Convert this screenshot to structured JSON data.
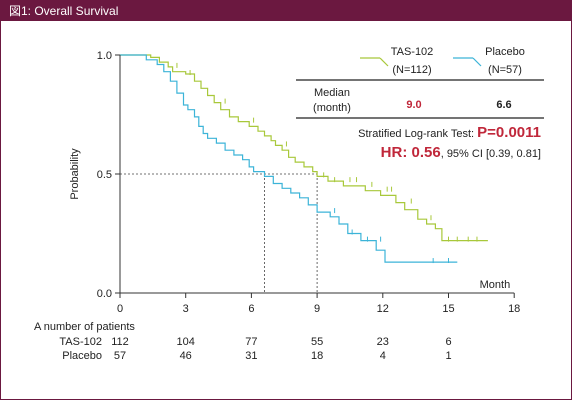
{
  "header": {
    "title": "図1: Overall Survival"
  },
  "chart_data": {
    "type": "line",
    "title": "図1: Overall Survival",
    "xlabel": "Month",
    "ylabel": "Probability",
    "xlim": [
      0,
      18
    ],
    "ylim": [
      0,
      1.0
    ],
    "x_ticks": [
      0,
      3,
      6,
      9,
      12,
      15,
      18
    ],
    "y_ticks": [
      0.0,
      0.5,
      1.0
    ],
    "y_tick_labels": [
      "0.0",
      "0.5",
      "1.0"
    ],
    "grid": false,
    "legend_position": "top-right",
    "median_line": {
      "y": 0.5,
      "x_values": [
        6.6,
        9.0
      ]
    },
    "series": [
      {
        "name": "TAS-102",
        "count_label": "(N=112)",
        "color": "#a8c83a",
        "points": [
          [
            0,
            1.0
          ],
          [
            1.4,
            1.0
          ],
          [
            1.4,
            0.99
          ],
          [
            1.8,
            0.99
          ],
          [
            1.8,
            0.97
          ],
          [
            2.2,
            0.97
          ],
          [
            2.2,
            0.95
          ],
          [
            2.4,
            0.95
          ],
          [
            2.4,
            0.93
          ],
          [
            3.0,
            0.93
          ],
          [
            3.0,
            0.92
          ],
          [
            3.4,
            0.92
          ],
          [
            3.4,
            0.89
          ],
          [
            3.7,
            0.89
          ],
          [
            3.7,
            0.86
          ],
          [
            4.0,
            0.86
          ],
          [
            4.0,
            0.83
          ],
          [
            4.3,
            0.83
          ],
          [
            4.3,
            0.8
          ],
          [
            4.6,
            0.8
          ],
          [
            4.6,
            0.77
          ],
          [
            5.0,
            0.77
          ],
          [
            5.0,
            0.74
          ],
          [
            5.4,
            0.74
          ],
          [
            5.4,
            0.72
          ],
          [
            5.9,
            0.72
          ],
          [
            5.9,
            0.7
          ],
          [
            6.3,
            0.7
          ],
          [
            6.3,
            0.68
          ],
          [
            6.6,
            0.68
          ],
          [
            6.6,
            0.66
          ],
          [
            6.9,
            0.66
          ],
          [
            6.9,
            0.64
          ],
          [
            7.1,
            0.64
          ],
          [
            7.1,
            0.62
          ],
          [
            7.4,
            0.62
          ],
          [
            7.4,
            0.6
          ],
          [
            7.7,
            0.6
          ],
          [
            7.7,
            0.57
          ],
          [
            8.0,
            0.57
          ],
          [
            8.0,
            0.55
          ],
          [
            8.4,
            0.55
          ],
          [
            8.4,
            0.53
          ],
          [
            8.8,
            0.53
          ],
          [
            8.8,
            0.51
          ],
          [
            9.0,
            0.51
          ],
          [
            9.0,
            0.49
          ],
          [
            9.5,
            0.49
          ],
          [
            9.5,
            0.47
          ],
          [
            10.2,
            0.47
          ],
          [
            10.2,
            0.45
          ],
          [
            11.2,
            0.45
          ],
          [
            11.2,
            0.43
          ],
          [
            11.9,
            0.43
          ],
          [
            11.9,
            0.41
          ],
          [
            12.6,
            0.41
          ],
          [
            12.6,
            0.38
          ],
          [
            13.0,
            0.38
          ],
          [
            13.0,
            0.35
          ],
          [
            13.6,
            0.35
          ],
          [
            13.6,
            0.31
          ],
          [
            14.0,
            0.31
          ],
          [
            14.0,
            0.29
          ],
          [
            14.4,
            0.29
          ],
          [
            14.4,
            0.27
          ],
          [
            14.7,
            0.27
          ],
          [
            14.7,
            0.22
          ],
          [
            16.8,
            0.22
          ]
        ],
        "censor_marks": [
          [
            2.6,
            0.95
          ],
          [
            3.2,
            0.92
          ],
          [
            4.8,
            0.8
          ],
          [
            6.1,
            0.72
          ],
          [
            7.6,
            0.62
          ],
          [
            9.3,
            0.49
          ],
          [
            9.8,
            0.47
          ],
          [
            10.5,
            0.47
          ],
          [
            10.8,
            0.47
          ],
          [
            11.5,
            0.45
          ],
          [
            12.2,
            0.43
          ],
          [
            12.4,
            0.43
          ],
          [
            13.3,
            0.38
          ],
          [
            14.2,
            0.31
          ],
          [
            15.0,
            0.22
          ],
          [
            15.4,
            0.22
          ],
          [
            15.9,
            0.22
          ],
          [
            16.3,
            0.22
          ]
        ]
      },
      {
        "name": "Placebo",
        "count_label": "(N=57)",
        "color": "#3cb4d8",
        "points": [
          [
            0,
            1.0
          ],
          [
            1.2,
            1.0
          ],
          [
            1.2,
            0.98
          ],
          [
            1.7,
            0.98
          ],
          [
            1.7,
            0.96
          ],
          [
            2.0,
            0.96
          ],
          [
            2.0,
            0.93
          ],
          [
            2.3,
            0.93
          ],
          [
            2.3,
            0.89
          ],
          [
            2.6,
            0.89
          ],
          [
            2.6,
            0.84
          ],
          [
            2.9,
            0.84
          ],
          [
            2.9,
            0.79
          ],
          [
            3.1,
            0.79
          ],
          [
            3.1,
            0.77
          ],
          [
            3.4,
            0.77
          ],
          [
            3.4,
            0.74
          ],
          [
            3.6,
            0.74
          ],
          [
            3.6,
            0.7
          ],
          [
            3.8,
            0.7
          ],
          [
            3.8,
            0.67
          ],
          [
            4.0,
            0.67
          ],
          [
            4.0,
            0.65
          ],
          [
            4.4,
            0.65
          ],
          [
            4.4,
            0.63
          ],
          [
            4.8,
            0.63
          ],
          [
            4.8,
            0.6
          ],
          [
            5.2,
            0.6
          ],
          [
            5.2,
            0.58
          ],
          [
            5.6,
            0.58
          ],
          [
            5.6,
            0.56
          ],
          [
            5.9,
            0.56
          ],
          [
            5.9,
            0.53
          ],
          [
            6.1,
            0.53
          ],
          [
            6.1,
            0.51
          ],
          [
            6.6,
            0.51
          ],
          [
            6.6,
            0.49
          ],
          [
            7.0,
            0.49
          ],
          [
            7.0,
            0.46
          ],
          [
            7.4,
            0.46
          ],
          [
            7.4,
            0.44
          ],
          [
            7.8,
            0.44
          ],
          [
            7.8,
            0.42
          ],
          [
            8.2,
            0.42
          ],
          [
            8.2,
            0.4
          ],
          [
            8.6,
            0.4
          ],
          [
            8.6,
            0.37
          ],
          [
            9.0,
            0.37
          ],
          [
            9.0,
            0.34
          ],
          [
            9.6,
            0.34
          ],
          [
            9.6,
            0.32
          ],
          [
            10.0,
            0.32
          ],
          [
            10.0,
            0.29
          ],
          [
            10.4,
            0.29
          ],
          [
            10.4,
            0.25
          ],
          [
            11.0,
            0.25
          ],
          [
            11.0,
            0.22
          ],
          [
            11.7,
            0.22
          ],
          [
            11.7,
            0.18
          ],
          [
            12.1,
            0.18
          ],
          [
            12.1,
            0.13
          ],
          [
            15.4,
            0.13
          ]
        ],
        "censor_marks": [
          [
            9.8,
            0.34
          ],
          [
            10.6,
            0.25
          ],
          [
            11.3,
            0.22
          ],
          [
            11.9,
            0.22
          ],
          [
            14.3,
            0.13
          ],
          [
            15.0,
            0.13
          ]
        ]
      }
    ],
    "annotations": {
      "median_label": "Median\n(month)",
      "median_tas": "9.0",
      "median_placebo": "6.6",
      "logrank_prefix": "Stratified Log-rank Test: ",
      "logrank_value": "P=0.0011",
      "hr_value": "HR: 0.56",
      "hr_ci": ", 95% CI [0.39, 0.81]"
    },
    "risk_table": {
      "title": "A number of patients",
      "times": [
        0,
        3,
        6,
        9,
        12,
        15
      ],
      "rows": [
        {
          "name": "TAS-102",
          "values": [
            112,
            104,
            77,
            55,
            23,
            6
          ]
        },
        {
          "name": "Placebo",
          "values": [
            57,
            46,
            31,
            18,
            4,
            1
          ]
        }
      ]
    }
  }
}
